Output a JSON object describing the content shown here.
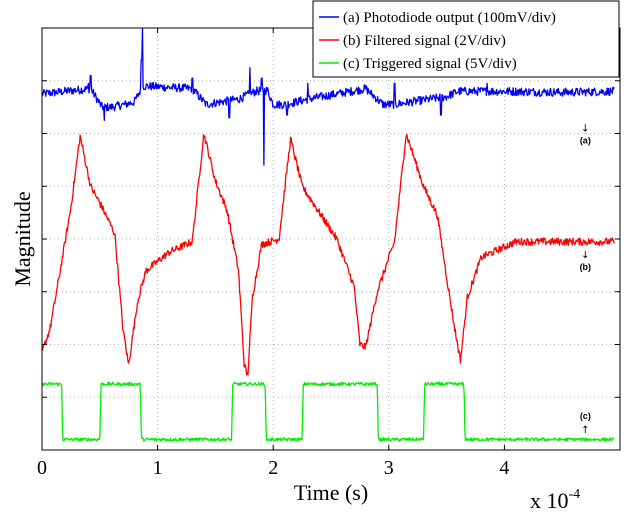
{
  "chart_data": {
    "type": "line",
    "title": "",
    "xlabel": "Time (s)",
    "ylabel": "Magnitude",
    "x_multiplier": "x 10",
    "x_multiplier_exp": "-4",
    "xlim": [
      0,
      5
    ],
    "ylim": [
      0,
      8
    ],
    "x_ticks": [
      "0",
      "1",
      "2",
      "3",
      "4"
    ],
    "grid": true,
    "legend_position": "top-right",
    "series": [
      {
        "name": "(a) Photodiode output (100mV/div)",
        "color": "#0000ff",
        "x": [
          0,
          0.2,
          0.42,
          0.52,
          0.6,
          0.72,
          0.8,
          0.86,
          0.88,
          1.3,
          1.42,
          1.55,
          1.7,
          1.85,
          1.95,
          2.0,
          2.1,
          2.2,
          2.3,
          2.8,
          2.95,
          3.05,
          3.2,
          3.35,
          3.5,
          3.6,
          3.7,
          4.0,
          4.5,
          4.95
        ],
        "values": [
          6.75,
          6.8,
          6.85,
          6.5,
          6.5,
          6.55,
          6.6,
          6.85,
          6.9,
          6.85,
          6.55,
          6.6,
          6.65,
          6.8,
          6.82,
          6.55,
          6.55,
          6.6,
          6.65,
          6.85,
          6.55,
          6.55,
          6.6,
          6.65,
          6.7,
          6.8,
          6.8,
          6.8,
          6.78,
          6.8
        ],
        "spikes": [
          {
            "x": 0.4,
            "value": 6.95
          },
          {
            "x": 0.42,
            "value": 7.1
          },
          {
            "x": 0.54,
            "value": 6.25
          },
          {
            "x": 0.86,
            "value": 7.4
          },
          {
            "x": 0.87,
            "value": 8.0
          },
          {
            "x": 1.3,
            "value": 7.05
          },
          {
            "x": 1.62,
            "value": 6.3
          },
          {
            "x": 1.8,
            "value": 7.25
          },
          {
            "x": 1.9,
            "value": 7.05
          },
          {
            "x": 1.92,
            "value": 5.4
          },
          {
            "x": 2.12,
            "value": 6.35
          },
          {
            "x": 2.3,
            "value": 6.95
          },
          {
            "x": 3.05,
            "value": 6.95
          },
          {
            "x": 3.45,
            "value": 6.35
          },
          {
            "x": 3.85,
            "value": 6.95
          }
        ],
        "noise": 0.08
      },
      {
        "name": "(b) Filtered signal (2V/div)",
        "color": "#ff0000",
        "x": [
          0,
          0.07,
          0.15,
          0.25,
          0.33,
          0.42,
          0.52,
          0.63,
          0.7,
          0.75,
          0.78,
          0.83,
          0.9,
          1.1,
          1.3,
          1.4,
          1.5,
          1.6,
          1.7,
          1.75,
          1.78,
          1.82,
          1.9,
          2.05,
          2.15,
          2.25,
          2.4,
          2.55,
          2.7,
          2.75,
          2.8,
          2.9,
          3.05,
          3.15,
          3.3,
          3.42,
          3.52,
          3.57,
          3.62,
          3.68,
          3.8,
          4.1,
          4.5,
          4.95
        ],
        "values": [
          1.85,
          2.3,
          3.3,
          4.6,
          5.95,
          5.0,
          4.6,
          4.1,
          2.3,
          1.6,
          2.1,
          2.85,
          3.4,
          3.75,
          3.95,
          6.0,
          5.1,
          4.55,
          3.4,
          1.6,
          1.4,
          2.9,
          3.9,
          4.0,
          5.9,
          5.0,
          4.5,
          4.0,
          3.1,
          2.0,
          1.95,
          3.0,
          3.95,
          6.0,
          5.0,
          4.45,
          3.0,
          2.3,
          1.7,
          2.9,
          3.65,
          3.95,
          3.95,
          3.95
        ],
        "noise": 0.07
      },
      {
        "name": "(c) Triggered signal (5V/div)",
        "color": "#00ee00",
        "x": [
          0,
          0.17,
          0.18,
          0.5,
          0.51,
          0.85,
          0.86,
          1.64,
          1.65,
          1.93,
          1.94,
          2.25,
          2.26,
          2.9,
          2.91,
          3.3,
          3.31,
          3.65,
          3.66,
          4.95
        ],
        "values": [
          1.25,
          1.25,
          0.2,
          0.2,
          1.25,
          1.25,
          0.2,
          0.2,
          1.25,
          1.25,
          0.2,
          0.2,
          1.25,
          1.25,
          0.2,
          0.2,
          1.25,
          1.25,
          0.2,
          0.2
        ],
        "noise": 0.03
      }
    ],
    "annotations": [
      {
        "text": "(a)",
        "x": 4.7,
        "y": 5.85,
        "arrow": "down"
      },
      {
        "text": "(b)",
        "x": 4.7,
        "y": 3.45,
        "arrow": "down"
      },
      {
        "text": "(c)",
        "x": 4.7,
        "y": 0.55,
        "arrow": "up"
      }
    ]
  }
}
